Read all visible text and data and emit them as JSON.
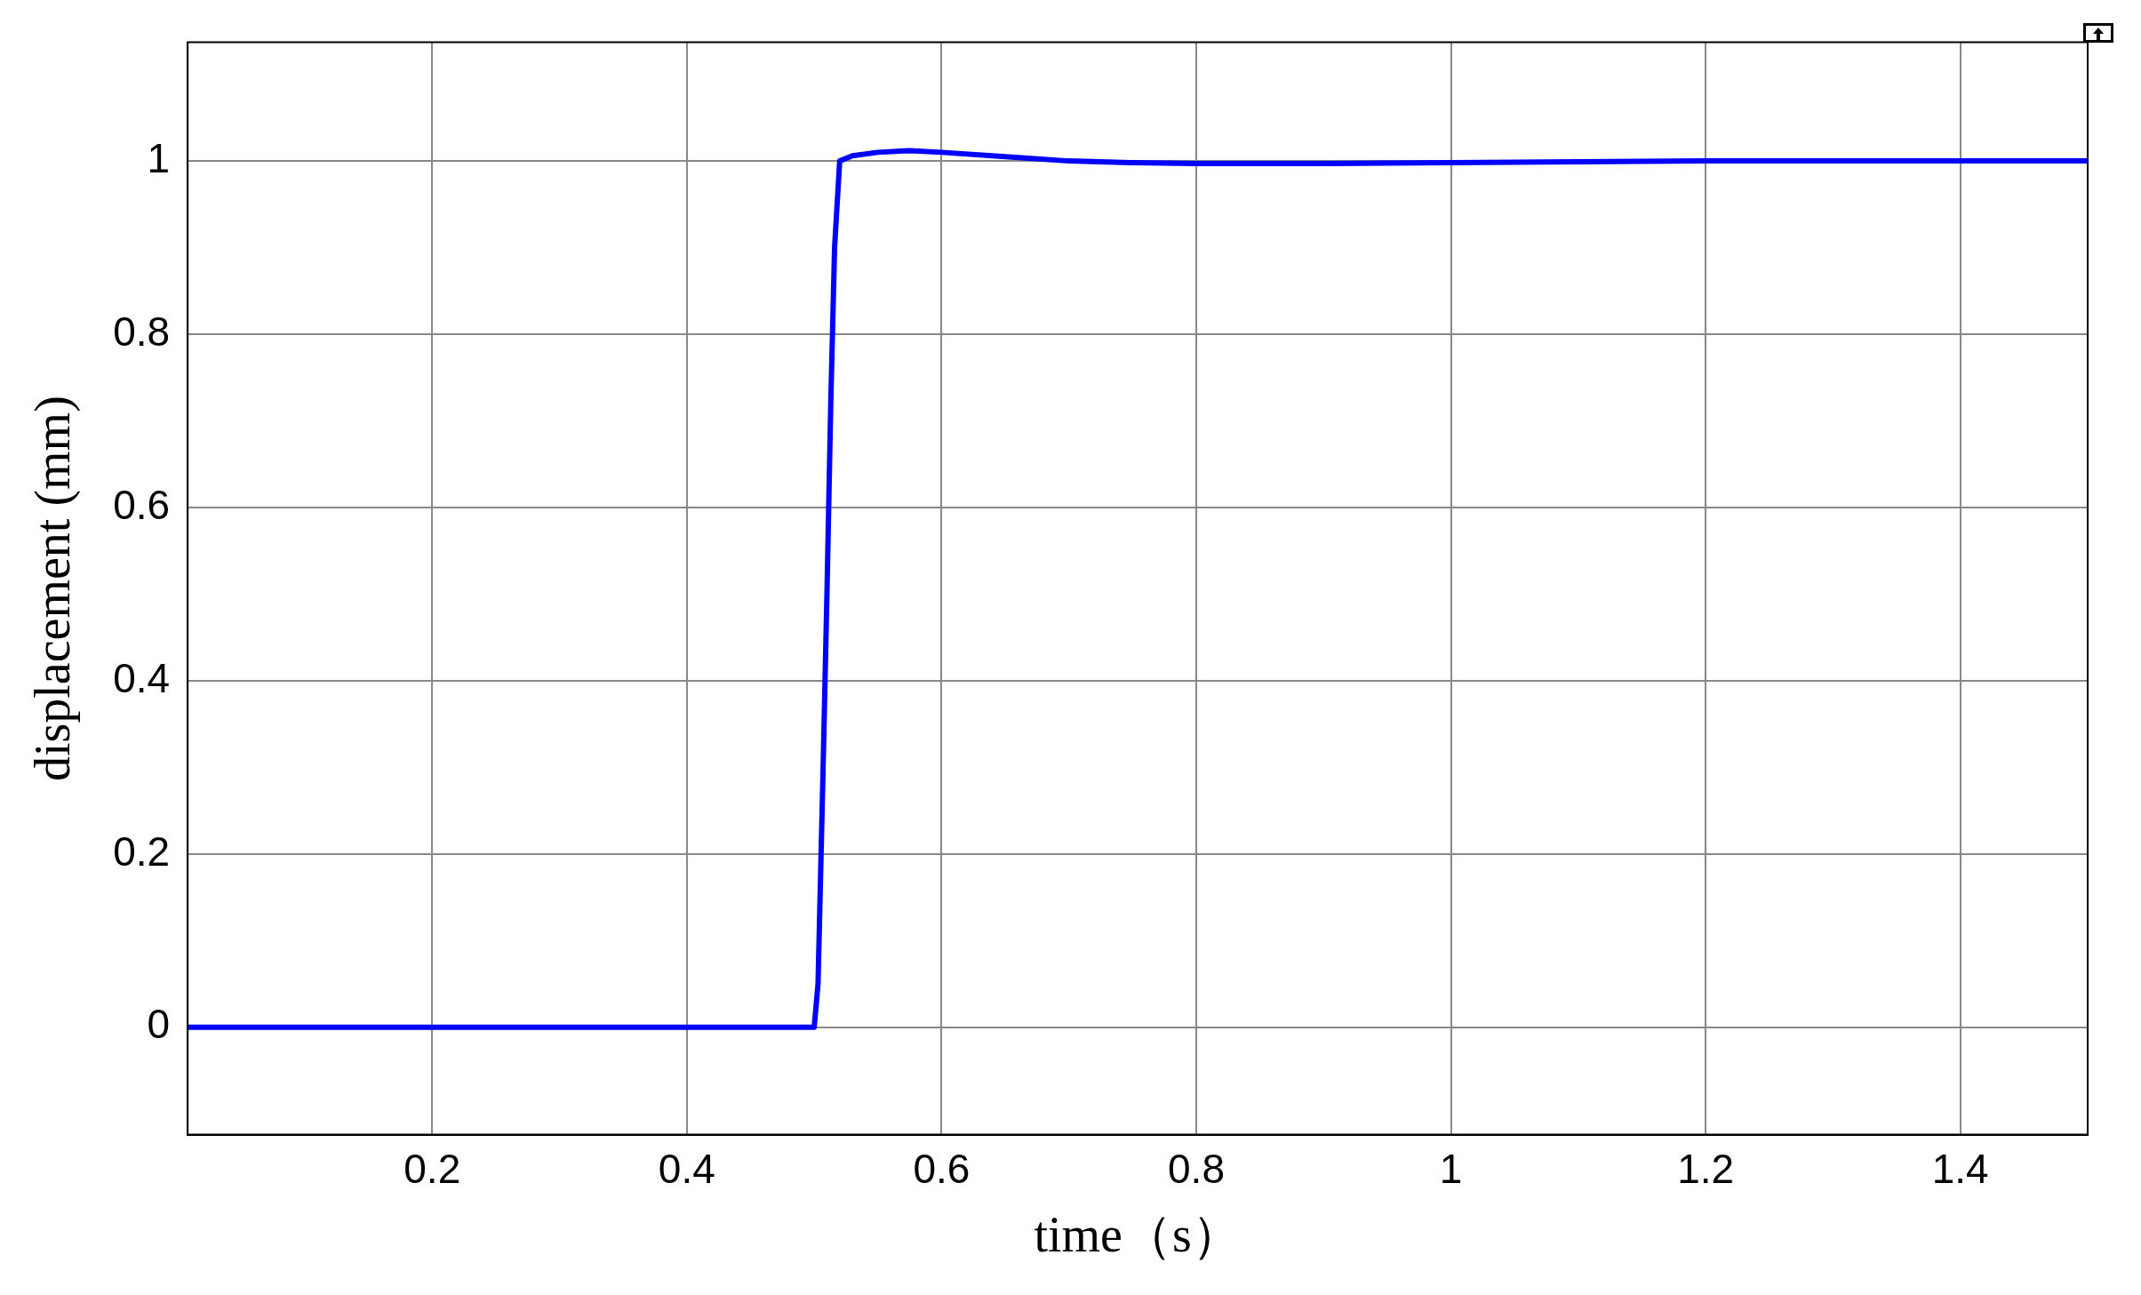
{
  "chart_data": {
    "type": "line",
    "xlabel": "time（s）",
    "ylabel": "displacement (mm)",
    "x": [
      0.008,
      0.3,
      0.5,
      0.503,
      0.507,
      0.51,
      0.513,
      0.516,
      0.52,
      0.53,
      0.55,
      0.575,
      0.6,
      0.65,
      0.7,
      0.75,
      0.8,
      0.9,
      1.0,
      1.1,
      1.2,
      1.3,
      1.4,
      1.5
    ],
    "series": [
      {
        "color": "#0000ff",
        "values": [
          0,
          0,
          0,
          0.05,
          0.3,
          0.5,
          0.72,
          0.9,
          1.0,
          1.006,
          1.01,
          1.012,
          1.01,
          1.005,
          1.0,
          0.998,
          0.997,
          0.997,
          0.998,
          0.999,
          1.0,
          1.0,
          1.0,
          1.0
        ]
      }
    ],
    "xlim": [
      0.008,
      1.5
    ],
    "xticks": [
      0.2,
      0.4,
      0.6,
      0.8,
      1,
      1.2,
      1.4
    ],
    "ylim": [
      -0.124,
      1.137
    ],
    "yticks": [
      0,
      0.2,
      0.4,
      0.6,
      0.8,
      1
    ],
    "grid": true,
    "legend": false,
    "marker": "none",
    "line_style": "solid"
  }
}
